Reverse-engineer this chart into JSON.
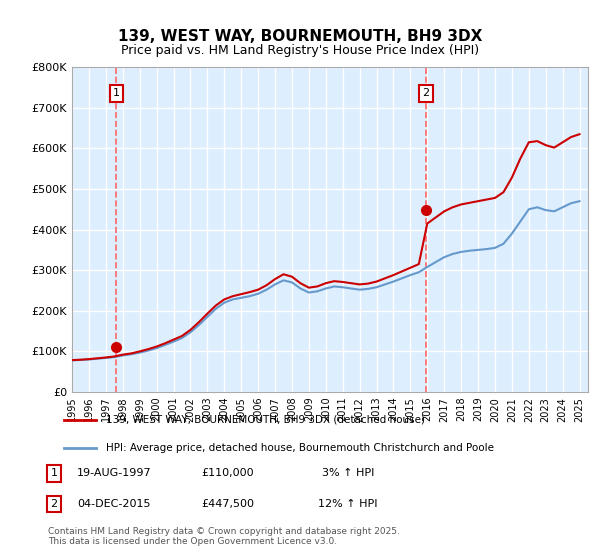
{
  "title": "139, WEST WAY, BOURNEMOUTH, BH9 3DX",
  "subtitle": "Price paid vs. HM Land Registry's House Price Index (HPI)",
  "legend_line1": "139, WEST WAY, BOURNEMOUTH, BH9 3DX (detached house)",
  "legend_line2": "HPI: Average price, detached house, Bournemouth Christchurch and Poole",
  "footnote": "Contains HM Land Registry data © Crown copyright and database right 2025.\nThis data is licensed under the Open Government Licence v3.0.",
  "purchase1_date": "19-AUG-1997",
  "purchase1_price": 110000,
  "purchase1_label": "1",
  "purchase1_pct": "3% ↑ HPI",
  "purchase2_date": "04-DEC-2015",
  "purchase2_price": 447500,
  "purchase2_label": "2",
  "purchase2_pct": "12% ↑ HPI",
  "purchase1_year": 1997.63,
  "purchase2_year": 2015.92,
  "red_line_color": "#cc0000",
  "blue_line_color": "#6699cc",
  "dashed_line_color": "#ff6666",
  "background_color": "#ddeeff",
  "plot_bg_color": "#ddeeff",
  "grid_color": "#ffffff",
  "ylim": [
    0,
    800000
  ],
  "xlim_start": 1995,
  "xlim_end": 2025.5,
  "ytick_labels": [
    "£0",
    "£100K",
    "£200K",
    "£300K",
    "£400K",
    "£500K",
    "£600K",
    "£700K",
    "£800K"
  ],
  "ytick_values": [
    0,
    100000,
    200000,
    300000,
    400000,
    500000,
    600000,
    700000,
    800000
  ],
  "hpi_years": [
    1995,
    1995.5,
    1996,
    1996.5,
    1997,
    1997.5,
    1998,
    1998.5,
    1999,
    1999.5,
    2000,
    2000.5,
    2001,
    2001.5,
    2002,
    2002.5,
    2003,
    2003.5,
    2004,
    2004.5,
    2005,
    2005.5,
    2006,
    2006.5,
    2007,
    2007.5,
    2008,
    2008.5,
    2009,
    2009.5,
    2010,
    2010.5,
    2011,
    2011.5,
    2012,
    2012.5,
    2013,
    2013.5,
    2014,
    2014.5,
    2015,
    2015.5,
    2016,
    2016.5,
    2017,
    2017.5,
    2018,
    2018.5,
    2019,
    2019.5,
    2020,
    2020.5,
    2021,
    2021.5,
    2022,
    2022.5,
    2023,
    2023.5,
    2024,
    2024.5,
    2025
  ],
  "hpi_values": [
    78000,
    79000,
    80000,
    82000,
    84000,
    86000,
    90000,
    93000,
    97000,
    102000,
    108000,
    116000,
    124000,
    133000,
    147000,
    165000,
    185000,
    205000,
    220000,
    228000,
    232000,
    236000,
    242000,
    252000,
    265000,
    275000,
    270000,
    255000,
    245000,
    248000,
    255000,
    260000,
    258000,
    255000,
    252000,
    254000,
    258000,
    265000,
    272000,
    280000,
    288000,
    295000,
    308000,
    320000,
    332000,
    340000,
    345000,
    348000,
    350000,
    352000,
    355000,
    365000,
    390000,
    420000,
    450000,
    455000,
    448000,
    445000,
    455000,
    465000,
    470000
  ],
  "prop_years": [
    1995,
    1995.5,
    1996,
    1996.5,
    1997,
    1997.5,
    1998,
    1998.5,
    1999,
    1999.5,
    2000,
    2000.5,
    2001,
    2001.5,
    2002,
    2002.5,
    2003,
    2003.5,
    2004,
    2004.5,
    2005,
    2005.5,
    2006,
    2006.5,
    2007,
    2007.5,
    2008,
    2008.5,
    2009,
    2009.5,
    2010,
    2010.5,
    2011,
    2011.5,
    2012,
    2012.5,
    2013,
    2013.5,
    2014,
    2014.5,
    2015,
    2015.5,
    2016,
    2016.5,
    2017,
    2017.5,
    2018,
    2018.5,
    2019,
    2019.5,
    2020,
    2020.5,
    2021,
    2021.5,
    2022,
    2022.5,
    2023,
    2023.5,
    2024,
    2024.5,
    2025
  ],
  "prop_values": [
    78500,
    79500,
    81000,
    83000,
    85000,
    87500,
    92000,
    95000,
    100000,
    105500,
    112000,
    120000,
    129000,
    138000,
    153000,
    172000,
    193000,
    213000,
    228000,
    236000,
    241000,
    246000,
    252000,
    263000,
    278000,
    290000,
    284000,
    268000,
    257000,
    260000,
    268000,
    273000,
    271000,
    268000,
    265000,
    267000,
    272000,
    280000,
    288000,
    297000,
    306000,
    315000,
    415000,
    430000,
    445000,
    455000,
    462000,
    466000,
    470000,
    474000,
    478000,
    492000,
    528000,
    575000,
    615000,
    618000,
    608000,
    602000,
    615000,
    628000,
    635000
  ]
}
